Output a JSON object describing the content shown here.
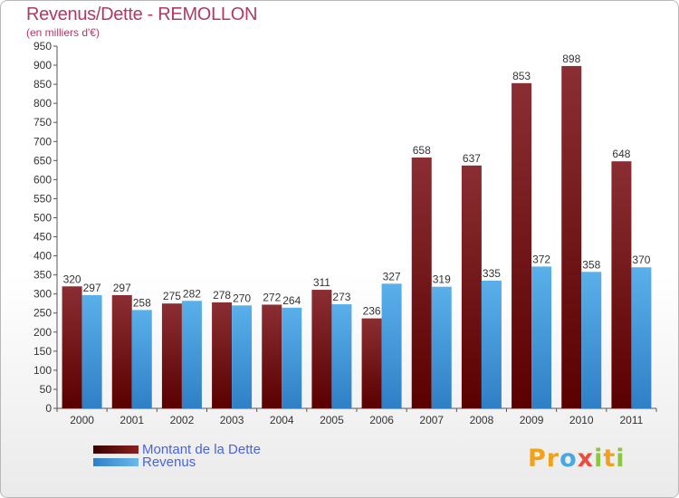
{
  "header": {
    "title": "Revenus/Dette - REMOLLON",
    "subtitle": "(en milliers d'€)"
  },
  "legend": [
    {
      "label": "Montant de la Dette",
      "color": "#6b0f0f"
    },
    {
      "label": "Revenus",
      "color": "#3f9be0"
    }
  ],
  "logo": {
    "text": "Proxiti"
  },
  "chart_data": {
    "type": "bar",
    "title": "Revenus/Dette - REMOLLON",
    "subtitle": "(en milliers d'€)",
    "xlabel": "",
    "ylabel": "",
    "categories": [
      "2000",
      "2001",
      "2002",
      "2003",
      "2004",
      "2005",
      "2006",
      "2007",
      "2008",
      "2009",
      "2010",
      "2011"
    ],
    "series": [
      {
        "name": "Montant de la Dette",
        "values": [
          320,
          297,
          275,
          278,
          272,
          311,
          236,
          658,
          637,
          853,
          898,
          648
        ],
        "color": "#7a1a1a"
      },
      {
        "name": "Revenus",
        "values": [
          297,
          258,
          282,
          270,
          264,
          273,
          327,
          319,
          335,
          372,
          358,
          370
        ],
        "color": "#4aa3e6"
      }
    ],
    "ylim": [
      0,
      950
    ],
    "yticks": [
      0,
      50,
      100,
      150,
      200,
      250,
      300,
      350,
      400,
      450,
      500,
      550,
      600,
      650,
      700,
      750,
      800,
      850,
      900,
      950
    ],
    "grid": false,
    "legend_position": "bottom-left"
  }
}
